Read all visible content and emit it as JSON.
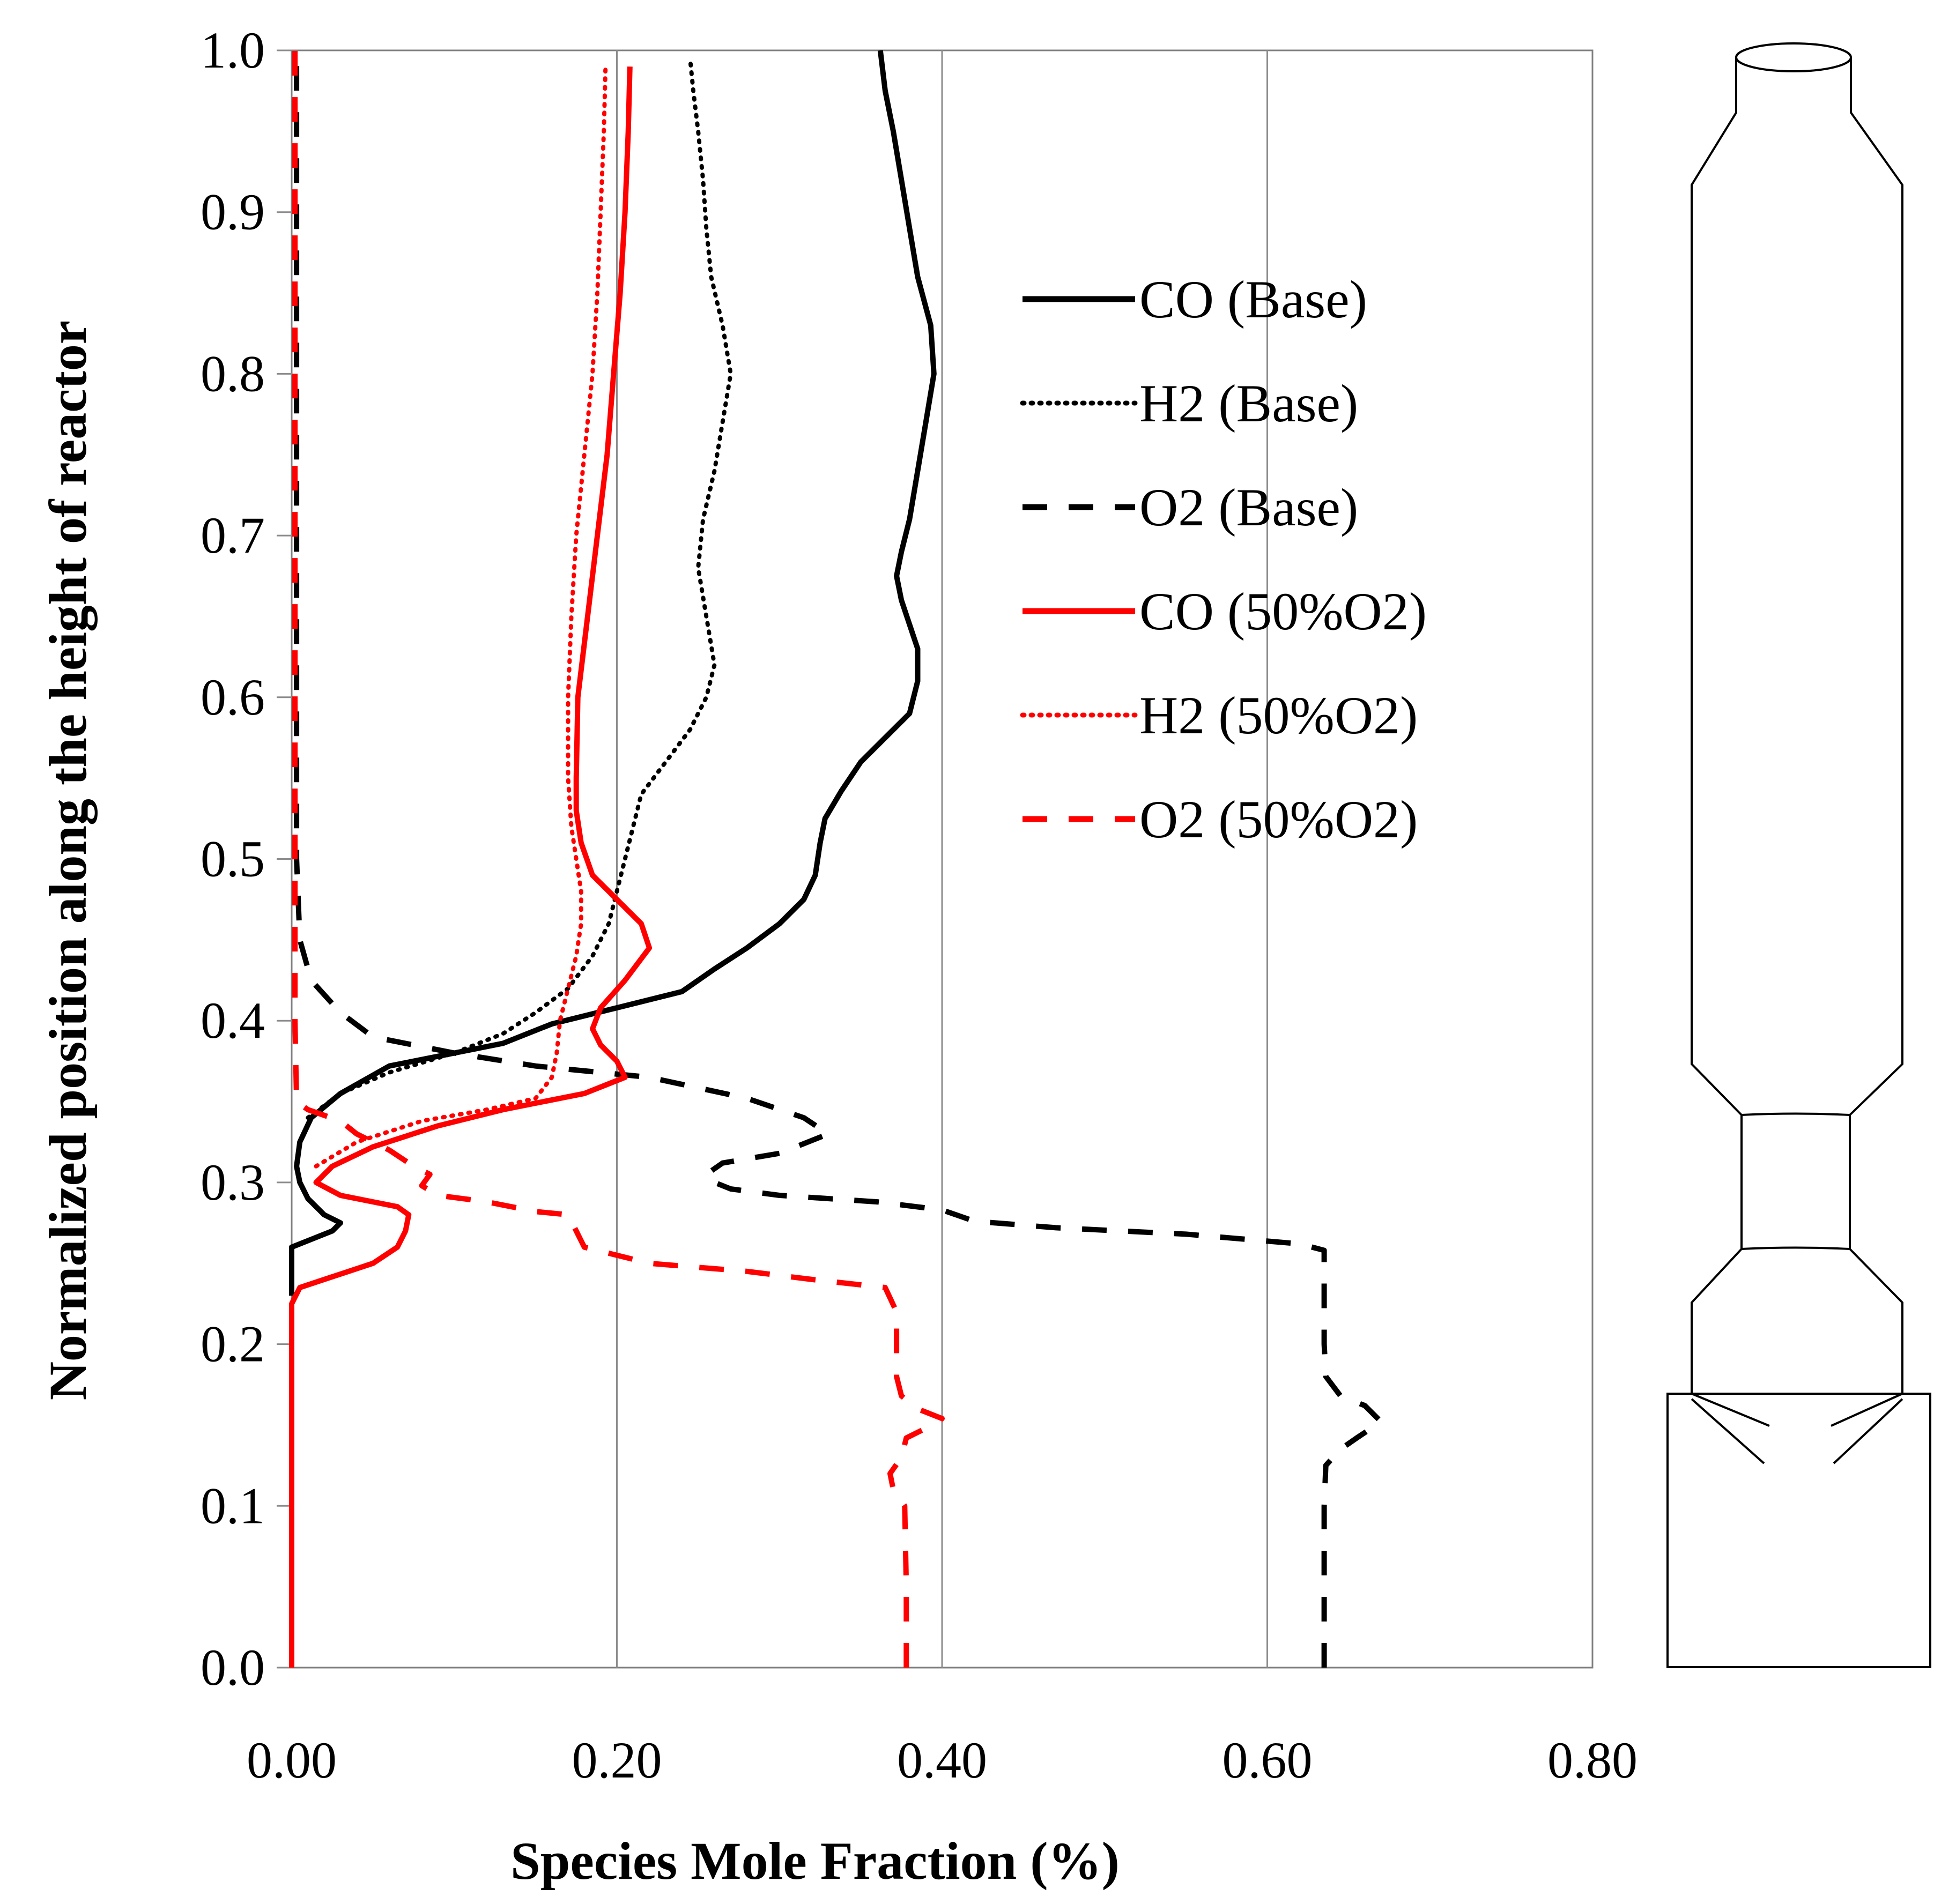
{
  "chart_data": {
    "type": "line",
    "title": "",
    "xlabel": "Species Mole Fraction (%)",
    "ylabel": "Normalized  position along the height of reactor",
    "xlim": [
      0,
      0.8
    ],
    "ylim": [
      0,
      1.0
    ],
    "x_ticks": [
      "0.00",
      "0.20",
      "0.40",
      "0.60",
      "0.80"
    ],
    "y_ticks": [
      "0.0",
      "0.1",
      "0.2",
      "0.3",
      "0.4",
      "0.5",
      "0.6",
      "0.7",
      "0.8",
      "0.9",
      "1.0"
    ],
    "grid": "vertical",
    "legend_position": "upper-middle",
    "colors": {
      "base": "#000000",
      "o2_50": "#ff0000"
    },
    "series": [
      {
        "name": "CO (Base)",
        "color": "#000000",
        "dash": "solid",
        "points": [
          [
            0.0,
            0.23
          ],
          [
            0.0,
            0.26
          ],
          [
            0.025,
            0.27
          ],
          [
            0.03,
            0.275
          ],
          [
            0.02,
            0.28
          ],
          [
            0.015,
            0.285
          ],
          [
            0.01,
            0.29
          ],
          [
            0.005,
            0.3
          ],
          [
            0.003,
            0.31
          ],
          [
            0.005,
            0.325
          ],
          [
            0.012,
            0.34
          ],
          [
            0.03,
            0.355
          ],
          [
            0.06,
            0.372
          ],
          [
            0.1,
            0.38
          ],
          [
            0.13,
            0.386
          ],
          [
            0.16,
            0.398
          ],
          [
            0.2,
            0.408
          ],
          [
            0.24,
            0.418
          ],
          [
            0.26,
            0.432
          ],
          [
            0.28,
            0.445
          ],
          [
            0.3,
            0.46
          ],
          [
            0.315,
            0.475
          ],
          [
            0.322,
            0.49
          ],
          [
            0.325,
            0.51
          ],
          [
            0.328,
            0.525
          ],
          [
            0.338,
            0.542
          ],
          [
            0.35,
            0.56
          ],
          [
            0.365,
            0.575
          ],
          [
            0.38,
            0.59
          ],
          [
            0.385,
            0.61
          ],
          [
            0.385,
            0.63
          ],
          [
            0.38,
            0.645
          ],
          [
            0.375,
            0.66
          ],
          [
            0.372,
            0.675
          ],
          [
            0.375,
            0.69
          ],
          [
            0.38,
            0.71
          ],
          [
            0.385,
            0.74
          ],
          [
            0.39,
            0.77
          ],
          [
            0.395,
            0.8
          ],
          [
            0.393,
            0.83
          ],
          [
            0.385,
            0.86
          ],
          [
            0.38,
            0.89
          ],
          [
            0.375,
            0.92
          ],
          [
            0.37,
            0.95
          ],
          [
            0.365,
            0.975
          ],
          [
            0.362,
            1.0
          ]
        ]
      },
      {
        "name": "H2 (Base)",
        "color": "#000000",
        "dash": "dotted",
        "points": [
          [
            0.01,
            0.34
          ],
          [
            0.03,
            0.355
          ],
          [
            0.06,
            0.368
          ],
          [
            0.1,
            0.38
          ],
          [
            0.13,
            0.392
          ],
          [
            0.15,
            0.405
          ],
          [
            0.17,
            0.42
          ],
          [
            0.185,
            0.44
          ],
          [
            0.195,
            0.46
          ],
          [
            0.2,
            0.48
          ],
          [
            0.205,
            0.5
          ],
          [
            0.21,
            0.52
          ],
          [
            0.215,
            0.54
          ],
          [
            0.23,
            0.56
          ],
          [
            0.245,
            0.58
          ],
          [
            0.255,
            0.6
          ],
          [
            0.26,
            0.62
          ],
          [
            0.255,
            0.65
          ],
          [
            0.25,
            0.68
          ],
          [
            0.253,
            0.71
          ],
          [
            0.26,
            0.74
          ],
          [
            0.265,
            0.77
          ],
          [
            0.27,
            0.8
          ],
          [
            0.265,
            0.83
          ],
          [
            0.258,
            0.86
          ],
          [
            0.255,
            0.89
          ],
          [
            0.253,
            0.92
          ],
          [
            0.25,
            0.95
          ],
          [
            0.247,
            0.975
          ],
          [
            0.245,
            0.995
          ]
        ]
      },
      {
        "name": "O2 (Base)",
        "color": "#000000",
        "dash": "dashed",
        "points": [
          [
            0.635,
            0.0
          ],
          [
            0.635,
            0.05
          ],
          [
            0.635,
            0.1
          ],
          [
            0.636,
            0.125
          ],
          [
            0.645,
            0.135
          ],
          [
            0.655,
            0.142
          ],
          [
            0.67,
            0.152
          ],
          [
            0.66,
            0.162
          ],
          [
            0.645,
            0.168
          ],
          [
            0.636,
            0.18
          ],
          [
            0.635,
            0.2
          ],
          [
            0.635,
            0.22
          ],
          [
            0.635,
            0.24
          ],
          [
            0.635,
            0.258
          ],
          [
            0.62,
            0.262
          ],
          [
            0.55,
            0.268
          ],
          [
            0.47,
            0.272
          ],
          [
            0.42,
            0.276
          ],
          [
            0.4,
            0.283
          ],
          [
            0.36,
            0.288
          ],
          [
            0.3,
            0.292
          ],
          [
            0.27,
            0.296
          ],
          [
            0.26,
            0.3
          ],
          [
            0.255,
            0.305
          ],
          [
            0.265,
            0.312
          ],
          [
            0.3,
            0.318
          ],
          [
            0.33,
            0.33
          ],
          [
            0.315,
            0.34
          ],
          [
            0.28,
            0.352
          ],
          [
            0.22,
            0.365
          ],
          [
            0.15,
            0.372
          ],
          [
            0.1,
            0.38
          ],
          [
            0.075,
            0.385
          ],
          [
            0.05,
            0.39
          ],
          [
            0.03,
            0.405
          ],
          [
            0.012,
            0.425
          ],
          [
            0.005,
            0.45
          ],
          [
            0.003,
            0.5
          ],
          [
            0.003,
            0.6
          ],
          [
            0.003,
            0.8
          ],
          [
            0.003,
            1.0
          ]
        ]
      },
      {
        "name": "CO (50%O2)",
        "color": "#ff0000",
        "dash": "solid",
        "points": [
          [
            0.0,
            0.0
          ],
          [
            0.0,
            0.1
          ],
          [
            0.0,
            0.2
          ],
          [
            0.0,
            0.225
          ],
          [
            0.005,
            0.235
          ],
          [
            0.02,
            0.24
          ],
          [
            0.05,
            0.25
          ],
          [
            0.065,
            0.26
          ],
          [
            0.07,
            0.27
          ],
          [
            0.072,
            0.28
          ],
          [
            0.065,
            0.285
          ],
          [
            0.05,
            0.288
          ],
          [
            0.03,
            0.292
          ],
          [
            0.015,
            0.3
          ],
          [
            0.025,
            0.31
          ],
          [
            0.05,
            0.322
          ],
          [
            0.09,
            0.335
          ],
          [
            0.13,
            0.345
          ],
          [
            0.18,
            0.355
          ],
          [
            0.205,
            0.365
          ],
          [
            0.2,
            0.375
          ],
          [
            0.19,
            0.385
          ],
          [
            0.185,
            0.395
          ],
          [
            0.19,
            0.408
          ],
          [
            0.205,
            0.425
          ],
          [
            0.22,
            0.445
          ],
          [
            0.215,
            0.46
          ],
          [
            0.2,
            0.475
          ],
          [
            0.185,
            0.49
          ],
          [
            0.178,
            0.51
          ],
          [
            0.175,
            0.53
          ],
          [
            0.175,
            0.55
          ],
          [
            0.176,
            0.6
          ],
          [
            0.182,
            0.65
          ],
          [
            0.188,
            0.7
          ],
          [
            0.194,
            0.75
          ],
          [
            0.198,
            0.8
          ],
          [
            0.202,
            0.85
          ],
          [
            0.205,
            0.9
          ],
          [
            0.207,
            0.95
          ],
          [
            0.208,
            0.99
          ]
        ]
      },
      {
        "name": "H2 (50%O2)",
        "color": "#ff0000",
        "dash": "dotted",
        "points": [
          [
            0.015,
            0.31
          ],
          [
            0.04,
            0.325
          ],
          [
            0.08,
            0.338
          ],
          [
            0.12,
            0.345
          ],
          [
            0.15,
            0.352
          ],
          [
            0.16,
            0.365
          ],
          [
            0.163,
            0.38
          ],
          [
            0.165,
            0.4
          ],
          [
            0.17,
            0.42
          ],
          [
            0.175,
            0.44
          ],
          [
            0.178,
            0.46
          ],
          [
            0.178,
            0.48
          ],
          [
            0.175,
            0.5
          ],
          [
            0.172,
            0.52
          ],
          [
            0.17,
            0.55
          ],
          [
            0.17,
            0.6
          ],
          [
            0.172,
            0.65
          ],
          [
            0.175,
            0.7
          ],
          [
            0.18,
            0.75
          ],
          [
            0.185,
            0.8
          ],
          [
            0.188,
            0.85
          ],
          [
            0.19,
            0.9
          ],
          [
            0.192,
            0.95
          ],
          [
            0.193,
            0.99
          ]
        ]
      },
      {
        "name": "O2 (50%O2)",
        "color": "#ff0000",
        "dash": "dashed",
        "points": [
          [
            0.378,
            0.0
          ],
          [
            0.378,
            0.05
          ],
          [
            0.377,
            0.1
          ],
          [
            0.37,
            0.11
          ],
          [
            0.368,
            0.12
          ],
          [
            0.375,
            0.13
          ],
          [
            0.378,
            0.142
          ],
          [
            0.39,
            0.148
          ],
          [
            0.4,
            0.154
          ],
          [
            0.385,
            0.16
          ],
          [
            0.375,
            0.168
          ],
          [
            0.372,
            0.18
          ],
          [
            0.372,
            0.2
          ],
          [
            0.372,
            0.22
          ],
          [
            0.365,
            0.235
          ],
          [
            0.32,
            0.24
          ],
          [
            0.28,
            0.245
          ],
          [
            0.22,
            0.25
          ],
          [
            0.18,
            0.26
          ],
          [
            0.175,
            0.27
          ],
          [
            0.17,
            0.28
          ],
          [
            0.15,
            0.282
          ],
          [
            0.12,
            0.288
          ],
          [
            0.09,
            0.292
          ],
          [
            0.08,
            0.298
          ],
          [
            0.085,
            0.305
          ],
          [
            0.075,
            0.31
          ],
          [
            0.06,
            0.32
          ],
          [
            0.04,
            0.33
          ],
          [
            0.03,
            0.338
          ],
          [
            0.01,
            0.345
          ],
          [
            0.003,
            0.35
          ],
          [
            0.002,
            0.4
          ],
          [
            0.002,
            0.5
          ],
          [
            0.002,
            0.6
          ],
          [
            0.002,
            0.8
          ],
          [
            0.002,
            1.0
          ]
        ]
      }
    ]
  },
  "legend": {
    "items": [
      {
        "label": "CO (Base)"
      },
      {
        "label": "H2 (Base)"
      },
      {
        "label": "O2 (Base)"
      },
      {
        "label": "CO (50%O2)"
      },
      {
        "label": "H2 (50%O2)"
      },
      {
        "label": "O2 (50%O2)"
      }
    ]
  }
}
